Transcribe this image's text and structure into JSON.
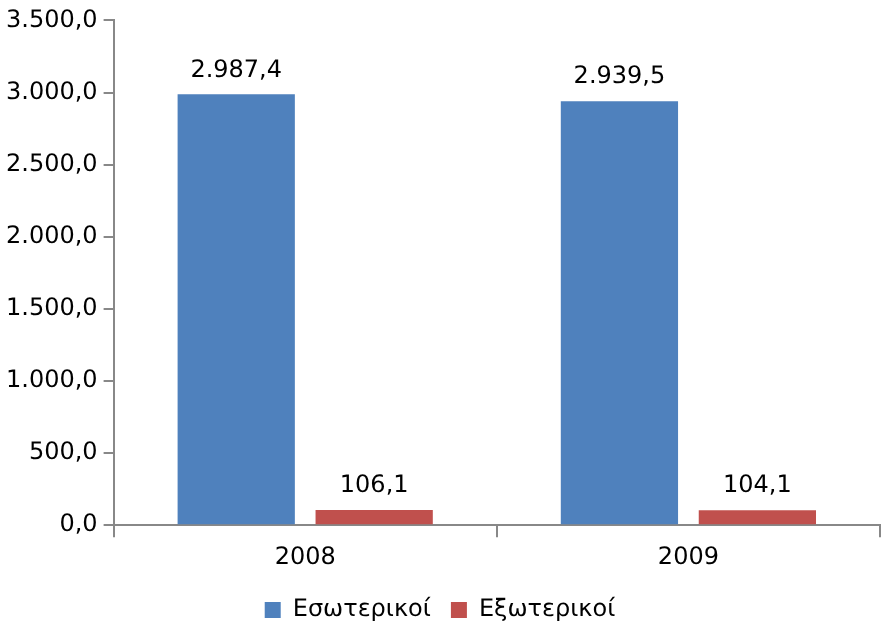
{
  "chart_data": {
    "type": "bar",
    "categories": [
      "2008",
      "2009"
    ],
    "series": [
      {
        "name": "Εσωτερικοί",
        "color": "#4f81bd",
        "values": [
          2987.4,
          2939.5
        ],
        "value_labels": [
          "2.987,4",
          "2.939,5"
        ]
      },
      {
        "name": "Εξωτερικοί",
        "color": "#c0504d",
        "values": [
          106.1,
          104.1
        ],
        "value_labels": [
          "106,1",
          "104,1"
        ]
      }
    ],
    "ylim": [
      0,
      3500
    ],
    "yticks": [
      {
        "value": 0,
        "label": "0,0"
      },
      {
        "value": 500,
        "label": "500,0"
      },
      {
        "value": 1000,
        "label": "1.000,0"
      },
      {
        "value": 1500,
        "label": "1.500,0"
      },
      {
        "value": 2000,
        "label": "2.000,0"
      },
      {
        "value": 2500,
        "label": "2.500,0"
      },
      {
        "value": 3000,
        "label": "3.000,0"
      },
      {
        "value": 3500,
        "label": "3.500,0"
      }
    ],
    "grid": false,
    "legend": "bottom"
  }
}
